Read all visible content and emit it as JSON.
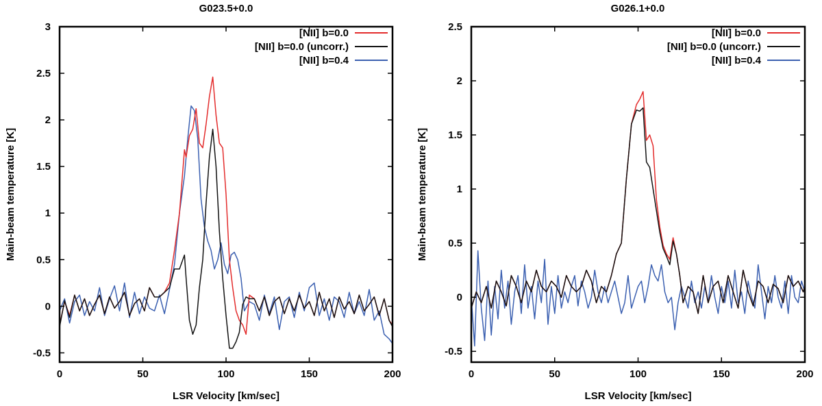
{
  "chart_data": [
    {
      "type": "line",
      "title": "G023.5+0.0",
      "xlabel": "LSR Velocity [km/sec]",
      "ylabel": "Main-beam temperature [K]",
      "xlim": [
        0,
        200
      ],
      "ylim": [
        -0.6,
        3
      ],
      "xticks": [
        0,
        50,
        100,
        150,
        200
      ],
      "xtick_labels": [
        "0",
        "50",
        "100",
        "150",
        "200"
      ],
      "yticks": [
        -0.5,
        0,
        0.5,
        1,
        1.5,
        2,
        2.5,
        3
      ],
      "ytick_labels": [
        "-0.5",
        "0",
        "0.5",
        "1",
        "1.5",
        "2",
        "2.5",
        "3"
      ],
      "legend_position": "top-right",
      "series": [
        {
          "name": "[NII] b=0.0",
          "color": "#e32b2b",
          "x": [
            0,
            3,
            6,
            9,
            12,
            15,
            18,
            21,
            24,
            27,
            30,
            33,
            36,
            39,
            42,
            45,
            48,
            51,
            54,
            57,
            60,
            63,
            66,
            69,
            72,
            75,
            76,
            78,
            80,
            82,
            84,
            86,
            88,
            90,
            92,
            94,
            96,
            98,
            100,
            102,
            104,
            106,
            108,
            110,
            112,
            114,
            117,
            120,
            123,
            126,
            129,
            132,
            135,
            138,
            141,
            144,
            147,
            150,
            153,
            156,
            159,
            162,
            165,
            168,
            171,
            174,
            177,
            180,
            183,
            186,
            189,
            192,
            195,
            198,
            200
          ],
          "values": [
            -0.2,
            0.05,
            -0.1,
            0.12,
            -0.05,
            0.08,
            -0.1,
            0.02,
            0.12,
            -0.08,
            0.1,
            -0.02,
            0.05,
            0.15,
            -0.1,
            0.03,
            0.08,
            -0.05,
            0.2,
            0.1,
            0.1,
            0.15,
            0.25,
            0.6,
            1.0,
            1.68,
            1.6,
            1.83,
            1.9,
            2.12,
            1.75,
            1.7,
            1.95,
            2.25,
            2.46,
            2.05,
            1.75,
            1.7,
            1.2,
            0.5,
            0.2,
            -0.05,
            -0.15,
            -0.2,
            -0.3,
            0.12,
            0.08,
            -0.05,
            0.1,
            -0.1,
            0.05,
            0.1,
            -0.08,
            0.08,
            -0.05,
            0.12,
            -0.02,
            0.05,
            -0.1,
            0.15,
            -0.05,
            0.08,
            -0.12,
            0.1,
            -0.03,
            0.05,
            -0.08,
            0.12,
            -0.05,
            0.02,
            0.1,
            -0.1,
            0.08,
            -0.15,
            -0.2
          ]
        },
        {
          "name": "[NII] b=0.0 (uncorr.)",
          "color": "#111111",
          "x": [
            0,
            3,
            6,
            9,
            12,
            15,
            18,
            21,
            24,
            27,
            30,
            33,
            36,
            39,
            42,
            45,
            48,
            51,
            54,
            57,
            60,
            63,
            66,
            69,
            72,
            75,
            76,
            78,
            80,
            82,
            84,
            86,
            88,
            90,
            92,
            94,
            96,
            98,
            100,
            102,
            104,
            106,
            108,
            110,
            112,
            114,
            117,
            120,
            123,
            126,
            129,
            132,
            135,
            138,
            141,
            144,
            147,
            150,
            153,
            156,
            159,
            162,
            165,
            168,
            171,
            174,
            177,
            180,
            183,
            186,
            189,
            192,
            195,
            198,
            200
          ],
          "values": [
            -0.22,
            0.06,
            -0.12,
            0.12,
            -0.05,
            0.08,
            -0.1,
            0.02,
            0.12,
            -0.08,
            0.1,
            -0.02,
            0.05,
            0.15,
            -0.1,
            0.03,
            0.08,
            -0.05,
            0.2,
            0.1,
            0.1,
            0.15,
            0.2,
            0.4,
            0.4,
            0.55,
            0.3,
            -0.15,
            -0.3,
            -0.2,
            0.2,
            0.5,
            1.1,
            1.6,
            1.9,
            1.5,
            0.8,
            0.3,
            -0.1,
            -0.45,
            -0.45,
            -0.38,
            -0.28,
            0.02,
            0.1,
            0.08,
            0.08,
            -0.05,
            0.1,
            -0.1,
            0.05,
            0.1,
            -0.08,
            0.08,
            -0.05,
            0.12,
            -0.02,
            0.05,
            -0.1,
            0.15,
            -0.05,
            0.08,
            -0.12,
            0.1,
            -0.03,
            0.05,
            -0.08,
            0.12,
            -0.05,
            0.02,
            0.1,
            -0.1,
            0.08,
            -0.15,
            -0.22
          ]
        },
        {
          "name": "[NII] b=0.4",
          "color": "#3a5fb0",
          "x": [
            0,
            3,
            6,
            9,
            12,
            15,
            18,
            21,
            24,
            27,
            30,
            33,
            36,
            39,
            42,
            45,
            48,
            51,
            54,
            57,
            60,
            63,
            66,
            69,
            72,
            75,
            77,
            79,
            81,
            83,
            85,
            87,
            89,
            91,
            93,
            95,
            97,
            99,
            101,
            103,
            105,
            107,
            109,
            111,
            114,
            117,
            120,
            123,
            126,
            129,
            132,
            135,
            138,
            141,
            144,
            147,
            150,
            153,
            156,
            159,
            162,
            165,
            168,
            171,
            174,
            177,
            180,
            183,
            186,
            189,
            192,
            195,
            198,
            200
          ],
          "values": [
            -0.05,
            0.08,
            -0.18,
            0.05,
            0.12,
            -0.1,
            0.05,
            -0.05,
            0.2,
            -0.1,
            0.08,
            0.22,
            -0.05,
            0.25,
            -0.12,
            0.15,
            -0.08,
            0.1,
            -0.02,
            -0.05,
            0.12,
            -0.08,
            0.18,
            0.45,
            1.0,
            1.4,
            1.8,
            2.15,
            2.1,
            1.8,
            1.15,
            0.85,
            0.7,
            0.6,
            0.4,
            0.5,
            0.68,
            0.45,
            0.35,
            0.55,
            0.58,
            0.5,
            0.3,
            -0.05,
            0.05,
            0.02,
            -0.15,
            0.12,
            -0.08,
            0.1,
            -0.25,
            0.05,
            0.1,
            -0.12,
            0.15,
            -0.05,
            0.2,
            0.25,
            -0.1,
            0.08,
            -0.15,
            0.1,
            0.05,
            -0.12,
            0.15,
            -0.08,
            0.05,
            -0.1,
            0.18,
            -0.15,
            -0.05,
            -0.3,
            -0.35,
            -0.4
          ]
        }
      ]
    },
    {
      "type": "line",
      "title": "G026.1+0.0",
      "xlabel": "LSR Velocity [km/sec]",
      "ylabel": "Main-beam temperature [K]",
      "xlim": [
        0,
        200
      ],
      "ylim": [
        -0.6,
        2.5
      ],
      "xticks": [
        0,
        50,
        100,
        150,
        200
      ],
      "xtick_labels": [
        "0",
        "50",
        "100",
        "150",
        "200"
      ],
      "yticks": [
        -0.5,
        0,
        0.5,
        1,
        1.5,
        2,
        2.5
      ],
      "ytick_labels": [
        "-0.5",
        "0",
        "0.5",
        "1",
        "1.5",
        "2",
        "2.5"
      ],
      "legend_position": "top-right",
      "series": [
        {
          "name": "[NII] b=0.0",
          "color": "#e32b2b",
          "x": [
            0,
            3,
            6,
            9,
            12,
            15,
            18,
            21,
            24,
            27,
            30,
            33,
            36,
            39,
            42,
            45,
            48,
            51,
            54,
            57,
            60,
            63,
            66,
            69,
            72,
            75,
            78,
            81,
            84,
            87,
            90,
            93,
            96,
            99,
            101,
            103,
            105,
            107,
            109,
            111,
            113,
            115,
            117,
            119,
            121,
            123,
            125,
            127,
            130,
            133,
            136,
            139,
            142,
            145,
            148,
            151,
            154,
            157,
            160,
            163,
            166,
            169,
            172,
            175,
            178,
            181,
            184,
            187,
            190,
            193,
            196,
            199,
            200
          ],
          "values": [
            -0.1,
            0.05,
            -0.05,
            0.1,
            -0.1,
            0.15,
            0.05,
            -0.08,
            0.2,
            0.1,
            -0.05,
            0.15,
            0.05,
            0.25,
            0.1,
            0.05,
            0.15,
            0.1,
            0.0,
            0.2,
            0.1,
            0.05,
            0.1,
            0.25,
            0.15,
            -0.05,
            0.1,
            0.05,
            0.2,
            0.4,
            0.5,
            1.1,
            1.6,
            1.78,
            1.83,
            1.9,
            1.45,
            1.5,
            1.4,
            0.9,
            0.65,
            0.48,
            0.4,
            0.35,
            0.55,
            0.4,
            0.2,
            -0.05,
            0.1,
            0.05,
            -0.15,
            0.2,
            -0.05,
            0.1,
            0.15,
            -0.05,
            0.2,
            0.05,
            -0.1,
            0.25,
            0.05,
            -0.08,
            0.15,
            0.1,
            -0.05,
            0.12,
            0.08,
            -0.05,
            0.2,
            0.1,
            0.15,
            0.05,
            0.1
          ]
        },
        {
          "name": "[NII] b=0.0 (uncorr.)",
          "color": "#111111",
          "x": [
            0,
            3,
            6,
            9,
            12,
            15,
            18,
            21,
            24,
            27,
            30,
            33,
            36,
            39,
            42,
            45,
            48,
            51,
            54,
            57,
            60,
            63,
            66,
            69,
            72,
            75,
            78,
            81,
            84,
            87,
            90,
            93,
            96,
            99,
            101,
            103,
            105,
            107,
            109,
            111,
            113,
            115,
            117,
            119,
            121,
            123,
            125,
            127,
            130,
            133,
            136,
            139,
            142,
            145,
            148,
            151,
            154,
            157,
            160,
            163,
            166,
            169,
            172,
            175,
            178,
            181,
            184,
            187,
            190,
            193,
            196,
            199,
            200
          ],
          "values": [
            -0.1,
            0.05,
            -0.05,
            0.1,
            -0.1,
            0.15,
            0.05,
            -0.08,
            0.2,
            0.1,
            -0.05,
            0.15,
            0.05,
            0.25,
            0.1,
            0.05,
            0.15,
            0.1,
            0.0,
            0.2,
            0.1,
            0.05,
            0.1,
            0.25,
            0.15,
            -0.05,
            0.1,
            0.05,
            0.2,
            0.4,
            0.5,
            1.1,
            1.6,
            1.73,
            1.72,
            1.75,
            1.25,
            1.2,
            1.0,
            0.8,
            0.6,
            0.45,
            0.38,
            0.3,
            0.52,
            0.4,
            0.2,
            -0.05,
            0.1,
            0.05,
            -0.15,
            0.2,
            -0.05,
            0.1,
            0.15,
            -0.05,
            0.2,
            0.05,
            -0.1,
            0.25,
            0.05,
            -0.08,
            0.15,
            0.1,
            -0.05,
            0.12,
            0.08,
            -0.05,
            0.2,
            0.1,
            0.15,
            0.05,
            0.1
          ]
        },
        {
          "name": "[NII] b=0.4",
          "color": "#3a5fb0",
          "x": [
            0,
            2,
            4,
            6,
            8,
            10,
            12,
            14,
            16,
            18,
            20,
            22,
            24,
            26,
            28,
            30,
            32,
            34,
            36,
            38,
            40,
            42,
            44,
            46,
            48,
            50,
            52,
            54,
            56,
            58,
            60,
            62,
            64,
            66,
            68,
            70,
            72,
            74,
            76,
            78,
            80,
            82,
            84,
            86,
            88,
            90,
            92,
            94,
            96,
            98,
            100,
            102,
            104,
            106,
            108,
            110,
            112,
            114,
            116,
            118,
            120,
            122,
            124,
            126,
            128,
            130,
            132,
            134,
            136,
            138,
            140,
            142,
            144,
            146,
            148,
            150,
            152,
            154,
            156,
            158,
            160,
            162,
            164,
            166,
            168,
            170,
            172,
            174,
            176,
            178,
            180,
            182,
            184,
            186,
            188,
            190,
            192,
            194,
            196,
            198,
            200
          ],
          "values": [
            0.0,
            -0.45,
            0.43,
            -0.1,
            -0.4,
            0.15,
            -0.35,
            0.1,
            -0.2,
            0.25,
            -0.1,
            0.15,
            -0.25,
            0.05,
            0.2,
            -0.15,
            0.3,
            -0.1,
            0.1,
            -0.2,
            0.15,
            -0.05,
            0.35,
            -0.25,
            0.1,
            -0.15,
            0.2,
            -0.1,
            0.05,
            -0.05,
            0.1,
            0.2,
            -0.08,
            0.15,
            0.05,
            -0.1,
            0.0,
            0.25,
            0.05,
            -0.05,
            0.1,
            -0.05,
            0.05,
            0.15,
            0.0,
            -0.15,
            -0.05,
            0.2,
            -0.1,
            0.0,
            0.1,
            0.15,
            -0.05,
            0.1,
            0.3,
            0.2,
            0.15,
            0.3,
            0.05,
            -0.05,
            0.0,
            -0.3,
            -0.05,
            0.1,
            0.0,
            -0.1,
            0.15,
            -0.05,
            0.05,
            -0.1,
            0.1,
            -0.05,
            0.2,
            0.0,
            -0.15,
            0.1,
            -0.05,
            0.15,
            -0.1,
            0.25,
            -0.05,
            0.05,
            -0.15,
            0.15,
            0.0,
            -0.1,
            0.3,
            0.05,
            -0.2,
            0.1,
            -0.05,
            0.2,
            0.0,
            -0.1,
            0.15,
            -0.15,
            0.2,
            0.0,
            -0.05,
            0.15,
            0.05
          ]
        }
      ]
    }
  ]
}
